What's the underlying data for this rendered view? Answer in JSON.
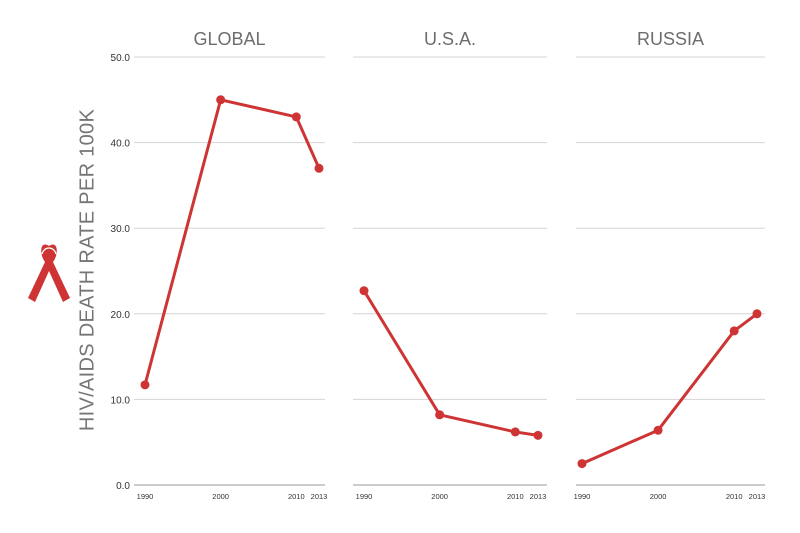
{
  "chart_data": {
    "type": "line",
    "ylabel": "HIV/AIDS DEATH RATE PER 100K",
    "ylim": [
      0,
      50
    ],
    "yticks": [
      "0.0",
      "10.0",
      "20.0",
      "30.0",
      "40.0",
      "50.0"
    ],
    "grid": true,
    "color": "#cf3434",
    "icon": "aids-ribbon-icon",
    "panels": [
      {
        "title": "GLOBAL",
        "x": [
          1990,
          2000,
          2010,
          2013
        ],
        "xticks": [
          "1990",
          "2000",
          "2010",
          "2013"
        ],
        "values": [
          11.7,
          45.0,
          43.0,
          37.0
        ]
      },
      {
        "title": "U.S.A.",
        "x": [
          1990,
          2000,
          2010,
          2013
        ],
        "xticks": [
          "1990",
          "2000",
          "2010",
          "2013"
        ],
        "values": [
          22.7,
          8.2,
          6.2,
          5.8
        ]
      },
      {
        "title": "RUSSIA",
        "x": [
          1990,
          2000,
          2010,
          2013
        ],
        "xticks": [
          "1990",
          "2000",
          "2010",
          "2013"
        ],
        "values": [
          2.5,
          6.4,
          18.0,
          20.0
        ]
      }
    ]
  }
}
